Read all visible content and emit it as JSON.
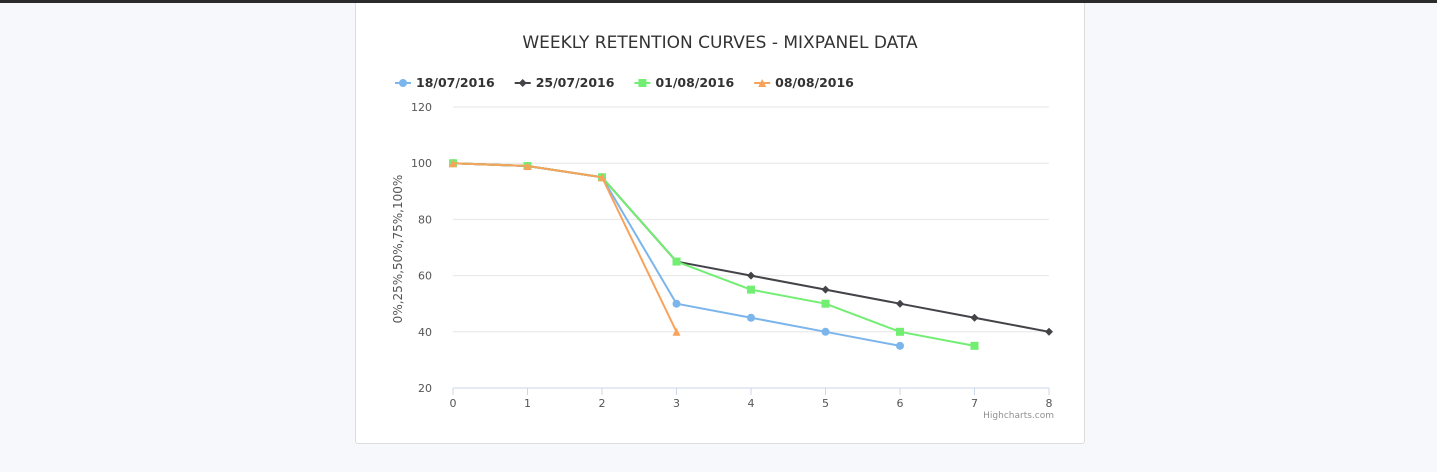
{
  "page": {
    "credits": "Highcharts.com"
  },
  "chart_data": {
    "type": "line",
    "title": "WEEKLY RETENTION CURVES - MIXPANEL DATA",
    "xlabel": "",
    "ylabel": "0%,25%,50%,75%,100%",
    "xlim": [
      0,
      8
    ],
    "ylim": [
      20,
      120
    ],
    "x_ticks": [
      "0",
      "1",
      "2",
      "3",
      "4",
      "5",
      "6",
      "7",
      "8"
    ],
    "y_ticks": [
      "20",
      "40",
      "60",
      "80",
      "100",
      "120"
    ],
    "grid": true,
    "legend_position": "top-left",
    "series": [
      {
        "name": "18/07/2016",
        "color": "#7cb5ec",
        "marker": "circle",
        "x": [
          0,
          1,
          2,
          3,
          4,
          5,
          6
        ],
        "values": [
          100,
          99,
          95,
          50,
          45,
          40,
          35
        ]
      },
      {
        "name": "25/07/2016",
        "color": "#434348",
        "marker": "diamond",
        "x": [
          0,
          1,
          2,
          3,
          4,
          5,
          6,
          7,
          8
        ],
        "values": [
          100,
          99,
          95,
          65,
          60,
          55,
          50,
          45,
          40
        ]
      },
      {
        "name": "01/08/2016",
        "color": "#72ee72",
        "marker": "square",
        "x": [
          0,
          1,
          2,
          3,
          4,
          5,
          6,
          7
        ],
        "values": [
          100,
          99,
          95,
          65,
          55,
          50,
          40,
          35
        ]
      },
      {
        "name": "08/08/2016",
        "color": "#f7a35c",
        "marker": "triangle",
        "x": [
          0,
          1,
          2,
          3
        ],
        "values": [
          100,
          99,
          95,
          40
        ]
      }
    ]
  }
}
